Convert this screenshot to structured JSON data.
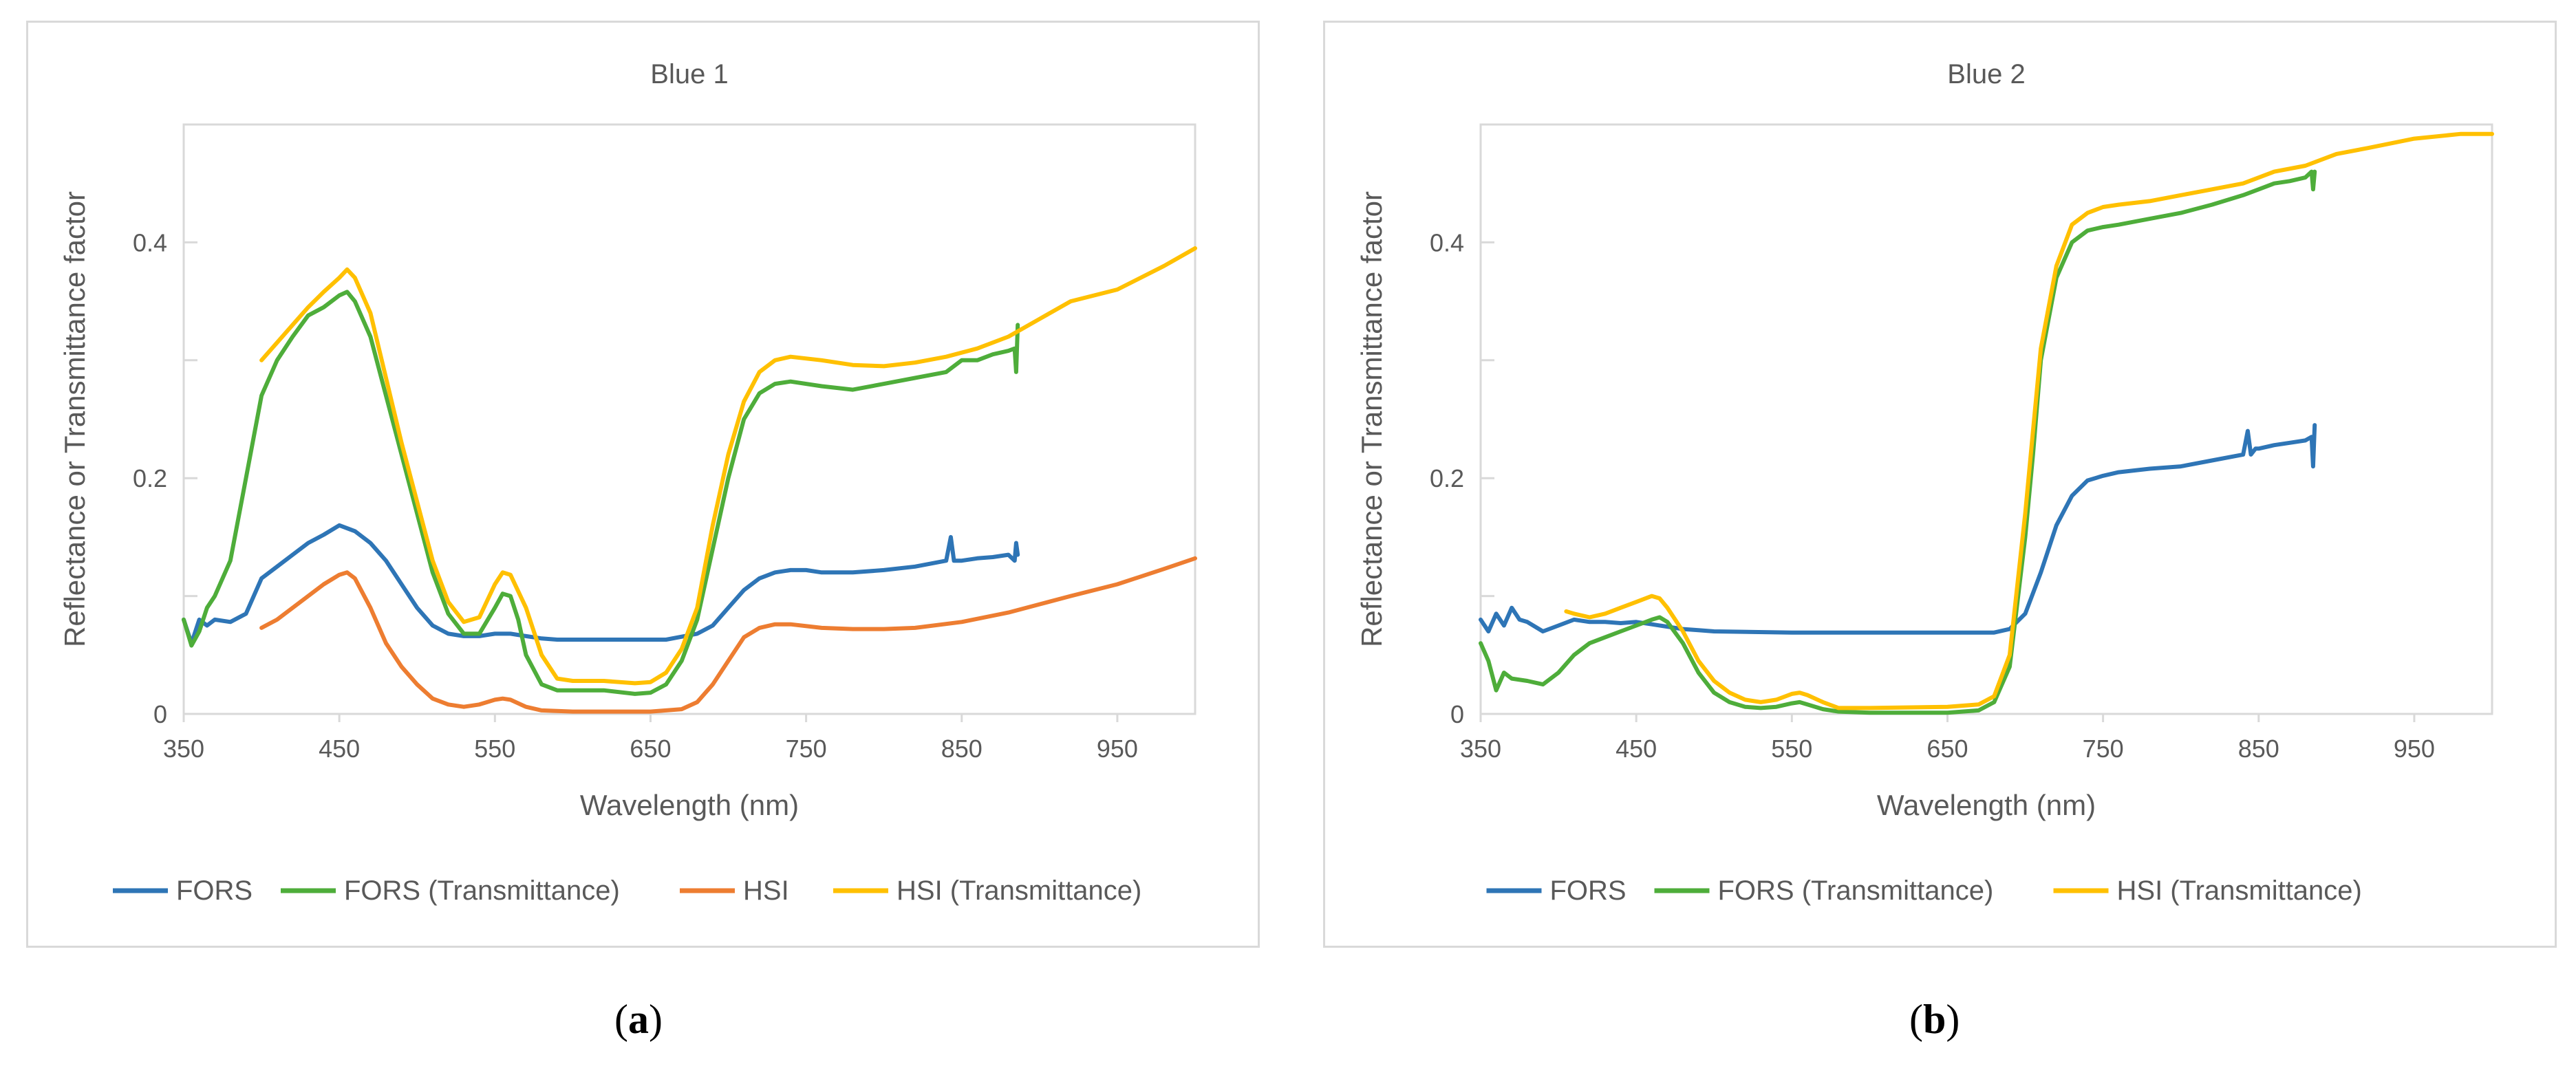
{
  "chart_data": [
    {
      "type": "line",
      "panel_label": "a",
      "title": "Blue 1",
      "xlabel": "Wavelength (nm)",
      "ylabel": "Reflectance or Transmittance factor",
      "xlim": [
        350,
        1000
      ],
      "ylim": [
        0,
        0.5
      ],
      "xticks": [
        350,
        450,
        550,
        650,
        750,
        850,
        950
      ],
      "yticks": [
        0,
        0.2,
        0.4
      ],
      "ytick_labels": [
        "0",
        "0.2",
        "0.4"
      ],
      "grid": false,
      "legend_position": "bottom",
      "series": [
        {
          "name": "FORS",
          "color": "#2e75b6",
          "x": [
            350,
            355,
            360,
            365,
            370,
            380,
            390,
            400,
            410,
            420,
            430,
            440,
            450,
            460,
            470,
            480,
            490,
            500,
            510,
            520,
            530,
            540,
            550,
            560,
            570,
            580,
            590,
            600,
            620,
            640,
            660,
            680,
            690,
            700,
            710,
            720,
            730,
            740,
            750,
            760,
            780,
            800,
            820,
            840,
            843,
            845,
            848,
            850,
            860,
            870,
            880,
            884,
            885,
            886
          ],
          "y": [
            0.08,
            0.06,
            0.08,
            0.075,
            0.08,
            0.078,
            0.085,
            0.115,
            0.125,
            0.135,
            0.145,
            0.152,
            0.16,
            0.155,
            0.145,
            0.13,
            0.11,
            0.09,
            0.075,
            0.068,
            0.066,
            0.066,
            0.068,
            0.068,
            0.066,
            0.064,
            0.063,
            0.063,
            0.063,
            0.063,
            0.063,
            0.068,
            0.075,
            0.09,
            0.105,
            0.115,
            0.12,
            0.122,
            0.122,
            0.12,
            0.12,
            0.122,
            0.125,
            0.13,
            0.15,
            0.13,
            0.13,
            0.13,
            0.132,
            0.133,
            0.135,
            0.13,
            0.145,
            0.135
          ]
        },
        {
          "name": "FORS (Transmittance)",
          "color": "#4ead3a",
          "x": [
            350,
            355,
            360,
            365,
            370,
            380,
            390,
            400,
            410,
            420,
            430,
            440,
            450,
            455,
            460,
            470,
            480,
            490,
            500,
            510,
            520,
            530,
            540,
            550,
            555,
            560,
            565,
            570,
            580,
            590,
            600,
            620,
            640,
            650,
            660,
            670,
            680,
            690,
            700,
            710,
            720,
            730,
            740,
            760,
            780,
            800,
            820,
            840,
            850,
            860,
            870,
            880,
            884,
            885,
            886
          ],
          "y": [
            0.08,
            0.058,
            0.07,
            0.09,
            0.1,
            0.13,
            0.2,
            0.27,
            0.3,
            0.32,
            0.338,
            0.345,
            0.355,
            0.358,
            0.35,
            0.32,
            0.27,
            0.22,
            0.17,
            0.12,
            0.085,
            0.068,
            0.068,
            0.09,
            0.102,
            0.1,
            0.08,
            0.05,
            0.025,
            0.02,
            0.02,
            0.02,
            0.017,
            0.018,
            0.025,
            0.045,
            0.08,
            0.14,
            0.2,
            0.25,
            0.272,
            0.28,
            0.282,
            0.278,
            0.275,
            0.28,
            0.285,
            0.29,
            0.3,
            0.3,
            0.305,
            0.308,
            0.31,
            0.29,
            0.33
          ]
        },
        {
          "name": "HSI",
          "color": "#ed7d31",
          "x": [
            400,
            410,
            420,
            430,
            440,
            450,
            455,
            460,
            470,
            480,
            490,
            500,
            510,
            520,
            530,
            540,
            550,
            555,
            560,
            570,
            580,
            600,
            650,
            670,
            680,
            690,
            700,
            710,
            720,
            730,
            740,
            760,
            780,
            800,
            820,
            850,
            880,
            900,
            920,
            950,
            980,
            1000
          ],
          "y": [
            0.073,
            0.08,
            0.09,
            0.1,
            0.11,
            0.118,
            0.12,
            0.115,
            0.09,
            0.06,
            0.04,
            0.025,
            0.013,
            0.008,
            0.006,
            0.008,
            0.012,
            0.013,
            0.012,
            0.006,
            0.003,
            0.002,
            0.002,
            0.004,
            0.01,
            0.025,
            0.045,
            0.065,
            0.073,
            0.076,
            0.076,
            0.073,
            0.072,
            0.072,
            0.073,
            0.078,
            0.086,
            0.093,
            0.1,
            0.11,
            0.123,
            0.132
          ]
        },
        {
          "name": "HSI (Transmittance)",
          "color": "#ffc000",
          "x": [
            400,
            410,
            420,
            430,
            440,
            450,
            455,
            460,
            470,
            480,
            490,
            500,
            510,
            520,
            530,
            540,
            550,
            555,
            560,
            570,
            580,
            590,
            600,
            620,
            640,
            650,
            660,
            670,
            680,
            690,
            700,
            710,
            720,
            730,
            740,
            760,
            780,
            800,
            820,
            840,
            860,
            880,
            900,
            920,
            950,
            980,
            1000
          ],
          "y": [
            0.3,
            0.315,
            0.33,
            0.345,
            0.358,
            0.37,
            0.377,
            0.37,
            0.34,
            0.285,
            0.23,
            0.18,
            0.13,
            0.095,
            0.078,
            0.082,
            0.11,
            0.12,
            0.118,
            0.09,
            0.05,
            0.03,
            0.028,
            0.028,
            0.026,
            0.027,
            0.035,
            0.055,
            0.09,
            0.16,
            0.22,
            0.265,
            0.29,
            0.3,
            0.303,
            0.3,
            0.296,
            0.295,
            0.298,
            0.303,
            0.31,
            0.32,
            0.335,
            0.35,
            0.36,
            0.38,
            0.395
          ]
        }
      ]
    },
    {
      "type": "line",
      "panel_label": "b",
      "title": "Blue 2",
      "xlabel": "Wavelength (nm)",
      "ylabel": "Reflectance or Transmittance factor",
      "xlim": [
        350,
        1000
      ],
      "ylim": [
        0,
        0.5
      ],
      "xticks": [
        350,
        450,
        550,
        650,
        750,
        850,
        950
      ],
      "yticks": [
        0,
        0.2,
        0.4
      ],
      "ytick_labels": [
        "0",
        "0.2",
        "0.4"
      ],
      "grid": false,
      "legend_position": "bottom",
      "series": [
        {
          "name": "FORS",
          "color": "#2e75b6",
          "x": [
            350,
            355,
            360,
            365,
            370,
            375,
            380,
            390,
            400,
            410,
            420,
            430,
            440,
            450,
            460,
            470,
            480,
            490,
            500,
            550,
            600,
            650,
            680,
            690,
            700,
            710,
            720,
            730,
            740,
            750,
            760,
            780,
            800,
            820,
            840,
            843,
            845,
            848,
            850,
            860,
            870,
            880,
            884,
            885,
            886
          ],
          "y": [
            0.08,
            0.07,
            0.085,
            0.075,
            0.09,
            0.08,
            0.078,
            0.07,
            0.075,
            0.08,
            0.078,
            0.078,
            0.077,
            0.078,
            0.076,
            0.074,
            0.072,
            0.071,
            0.07,
            0.069,
            0.069,
            0.069,
            0.069,
            0.072,
            0.085,
            0.12,
            0.16,
            0.185,
            0.198,
            0.202,
            0.205,
            0.208,
            0.21,
            0.215,
            0.22,
            0.24,
            0.22,
            0.225,
            0.225,
            0.228,
            0.23,
            0.232,
            0.235,
            0.21,
            0.245
          ]
        },
        {
          "name": "FORS (Transmittance)",
          "color": "#4ead3a",
          "x": [
            350,
            355,
            360,
            365,
            370,
            380,
            390,
            400,
            410,
            420,
            430,
            440,
            450,
            460,
            465,
            470,
            480,
            490,
            500,
            510,
            520,
            530,
            540,
            550,
            555,
            560,
            570,
            580,
            600,
            650,
            670,
            680,
            690,
            700,
            705,
            710,
            720,
            730,
            740,
            750,
            760,
            780,
            800,
            820,
            840,
            850,
            860,
            870,
            880,
            884,
            885,
            886
          ],
          "y": [
            0.06,
            0.045,
            0.02,
            0.035,
            0.03,
            0.028,
            0.025,
            0.035,
            0.05,
            0.06,
            0.065,
            0.07,
            0.075,
            0.08,
            0.082,
            0.078,
            0.06,
            0.035,
            0.018,
            0.01,
            0.006,
            0.005,
            0.006,
            0.009,
            0.01,
            0.008,
            0.004,
            0.002,
            0.001,
            0.001,
            0.003,
            0.01,
            0.04,
            0.15,
            0.22,
            0.3,
            0.37,
            0.4,
            0.41,
            0.413,
            0.415,
            0.42,
            0.425,
            0.432,
            0.44,
            0.445,
            0.45,
            0.452,
            0.455,
            0.46,
            0.445,
            0.46
          ]
        },
        {
          "name": "HSI (Transmittance)",
          "color": "#ffc000",
          "x": [
            405,
            410,
            420,
            430,
            440,
            450,
            460,
            465,
            470,
            480,
            490,
            500,
            510,
            520,
            530,
            540,
            550,
            555,
            560,
            570,
            580,
            600,
            650,
            670,
            680,
            690,
            700,
            705,
            710,
            720,
            730,
            740,
            750,
            760,
            780,
            800,
            820,
            840,
            860,
            880,
            900,
            920,
            950,
            980,
            1000
          ],
          "y": [
            0.087,
            0.085,
            0.082,
            0.085,
            0.09,
            0.095,
            0.1,
            0.098,
            0.09,
            0.07,
            0.045,
            0.028,
            0.018,
            0.012,
            0.01,
            0.012,
            0.017,
            0.018,
            0.016,
            0.01,
            0.005,
            0.005,
            0.006,
            0.008,
            0.015,
            0.05,
            0.17,
            0.24,
            0.31,
            0.38,
            0.415,
            0.425,
            0.43,
            0.432,
            0.435,
            0.44,
            0.445,
            0.45,
            0.46,
            0.465,
            0.475,
            0.48,
            0.488,
            0.492,
            0.492
          ]
        }
      ]
    }
  ],
  "captions": [
    {
      "open": "(",
      "letter": "a",
      "close": ")"
    },
    {
      "open": "(",
      "letter": "b",
      "close": ")"
    }
  ]
}
